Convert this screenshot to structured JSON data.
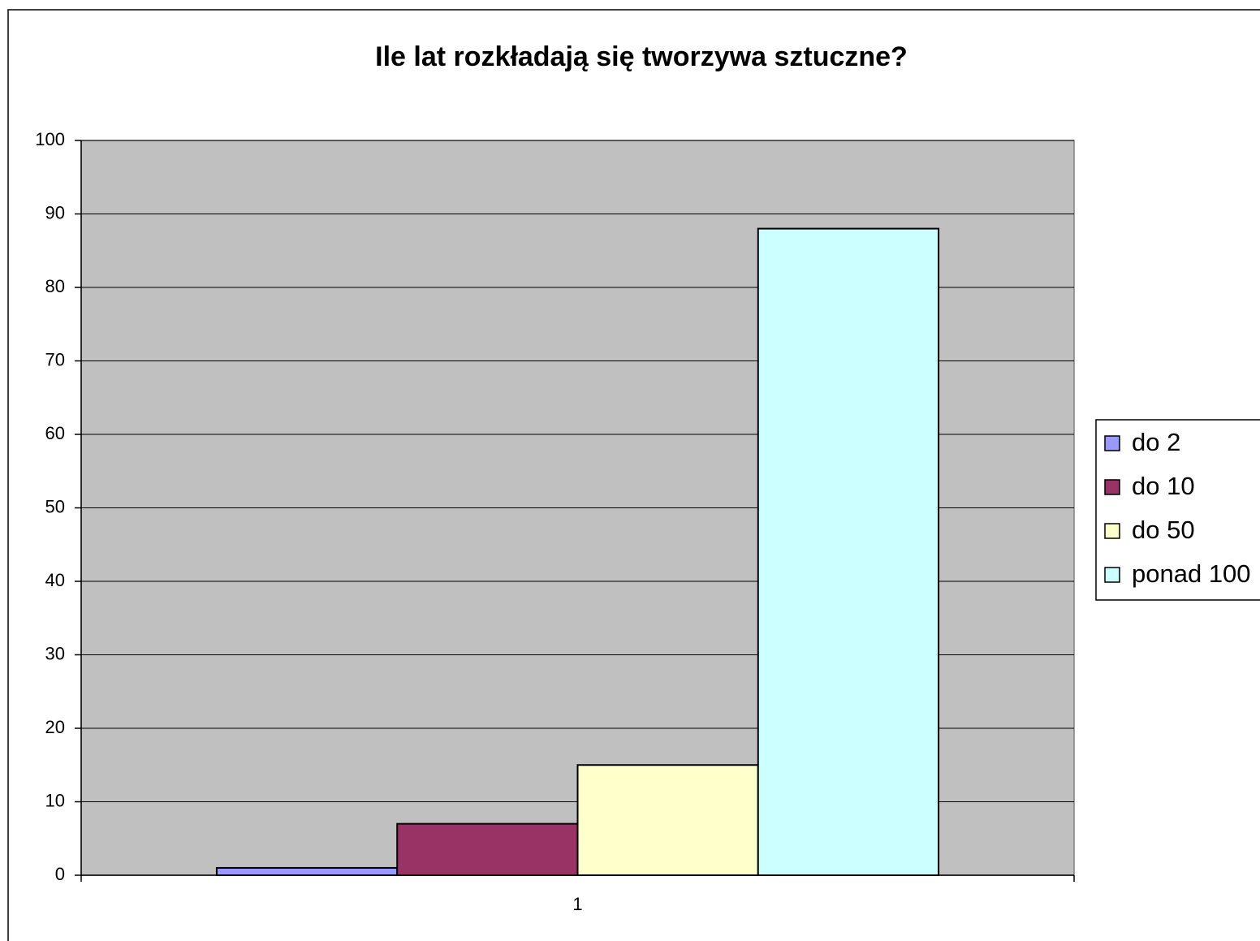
{
  "chart_data": {
    "type": "bar",
    "title": "Ile lat rozkładają się tworzywa sztuczne?",
    "categories": [
      "1"
    ],
    "series": [
      {
        "name": "do 2",
        "color": "#9999ff",
        "values": [
          1
        ]
      },
      {
        "name": "do 10",
        "color": "#993366",
        "values": [
          7
        ]
      },
      {
        "name": "do 50",
        "color": "#ffffcc",
        "values": [
          15
        ]
      },
      {
        "name": "ponad 100",
        "color": "#ccffff",
        "values": [
          88
        ]
      }
    ],
    "ylim": [
      0,
      100
    ],
    "yticks": [
      0,
      10,
      20,
      30,
      40,
      50,
      60,
      70,
      80,
      90,
      100
    ],
    "grid": true,
    "legend": "right"
  }
}
